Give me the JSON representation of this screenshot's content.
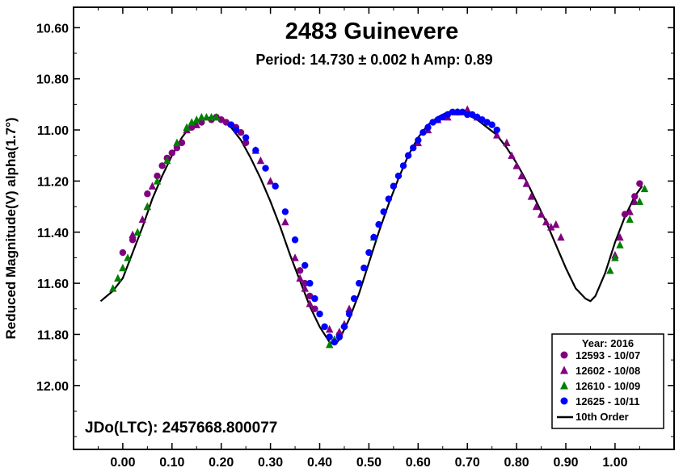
{
  "chart_data": {
    "type": "scatter",
    "title": "2483 Guinevere",
    "subtitle": "Period: 14.730 ± 0.002 h   Amp: 0.89",
    "ylabel": "Reduced Magnitude(V) alpha(1.7°)",
    "xlabel": "",
    "xlim": [
      -0.1,
      1.12
    ],
    "ylim": [
      10.52,
      12.25
    ],
    "y_inverted": true,
    "x_ticks": [
      "0.00",
      "0.10",
      "0.20",
      "0.30",
      "0.40",
      "0.50",
      "0.60",
      "0.70",
      "0.80",
      "0.90",
      "1.00"
    ],
    "y_ticks": [
      "10.60",
      "10.80",
      "11.00",
      "11.20",
      "11.40",
      "11.60",
      "11.80",
      "12.00"
    ],
    "annotation": "JDo(LTC): 2457668.800077",
    "legend": {
      "title": "Year: 2016",
      "position": "bottom-right",
      "entries": [
        {
          "label": "12593 - 10/07",
          "marker": "circle",
          "color": "#800080"
        },
        {
          "label": "12602 - 10/08",
          "marker": "triangle",
          "color": "#800080"
        },
        {
          "label": "12610 - 10/09",
          "marker": "triangle",
          "color": "#008000"
        },
        {
          "label": "12625 - 10/11",
          "marker": "circle",
          "color": "#0000ff"
        },
        {
          "label": "10th Order",
          "marker": "line",
          "color": "#000000"
        }
      ]
    },
    "fit_curve": {
      "name": "10th Order",
      "x": [
        -0.045,
        -0.02,
        0.0,
        0.02,
        0.04,
        0.06,
        0.08,
        0.1,
        0.12,
        0.14,
        0.16,
        0.18,
        0.2,
        0.22,
        0.24,
        0.26,
        0.28,
        0.3,
        0.32,
        0.34,
        0.36,
        0.38,
        0.4,
        0.42,
        0.43,
        0.44,
        0.46,
        0.48,
        0.5,
        0.52,
        0.54,
        0.56,
        0.58,
        0.6,
        0.62,
        0.64,
        0.66,
        0.68,
        0.7,
        0.72,
        0.74,
        0.76,
        0.78,
        0.8,
        0.82,
        0.84,
        0.86,
        0.88,
        0.9,
        0.92,
        0.94,
        0.95,
        0.96,
        0.98,
        1.0,
        1.02,
        1.04,
        1.055
      ],
      "y": [
        11.67,
        11.63,
        11.58,
        11.48,
        11.38,
        11.27,
        11.18,
        11.1,
        11.03,
        10.98,
        10.96,
        10.95,
        10.96,
        10.99,
        11.04,
        11.11,
        11.19,
        11.28,
        11.38,
        11.49,
        11.59,
        11.69,
        11.77,
        11.83,
        11.84,
        11.82,
        11.74,
        11.64,
        11.52,
        11.4,
        11.29,
        11.19,
        11.1,
        11.03,
        10.98,
        10.95,
        10.93,
        10.93,
        10.94,
        10.96,
        10.99,
        11.02,
        11.07,
        11.13,
        11.2,
        11.28,
        11.36,
        11.45,
        11.54,
        11.62,
        11.66,
        11.67,
        11.65,
        11.56,
        11.44,
        11.34,
        11.26,
        11.22
      ]
    },
    "series": [
      {
        "name": "12593 - 10/07",
        "marker": "circle",
        "color": "#800080",
        "x": [
          0.0,
          0.02,
          0.05,
          0.07,
          0.08,
          0.09,
          0.1,
          0.11,
          0.12,
          0.14,
          0.16,
          0.18,
          0.19,
          0.2,
          0.21,
          0.22,
          0.23,
          0.24,
          0.25,
          0.36,
          0.37,
          0.38,
          0.39,
          0.43,
          0.44,
          0.45,
          1.02,
          1.04,
          1.05
        ],
        "y": [
          11.48,
          11.43,
          11.25,
          11.18,
          11.14,
          11.11,
          11.09,
          11.07,
          11.05,
          10.99,
          10.97,
          10.96,
          10.95,
          10.96,
          10.97,
          10.98,
          10.99,
          11.01,
          11.05,
          11.55,
          11.6,
          11.65,
          11.7,
          11.83,
          11.8,
          11.77,
          11.33,
          11.26,
          11.21
        ]
      },
      {
        "name": "12602 - 10/08",
        "marker": "triangle",
        "color": "#800080",
        "x": [
          0.02,
          0.04,
          0.05,
          0.06,
          0.13,
          0.15,
          0.27,
          0.28,
          0.3,
          0.33,
          0.35,
          0.36,
          0.37,
          0.38,
          0.42,
          0.43,
          0.44,
          0.45,
          0.46,
          0.6,
          0.62,
          0.64,
          0.66,
          0.68,
          0.7,
          0.72,
          0.76,
          0.78,
          0.79,
          0.8,
          0.81,
          0.82,
          0.83,
          0.84,
          0.85,
          0.86,
          0.87,
          0.88,
          0.89,
          1.0,
          1.01,
          1.03,
          1.04
        ],
        "y": [
          11.41,
          11.35,
          11.3,
          11.22,
          11.0,
          10.98,
          11.08,
          11.12,
          11.2,
          11.36,
          11.5,
          11.58,
          11.62,
          11.68,
          11.78,
          11.82,
          11.79,
          11.76,
          11.7,
          11.05,
          11.0,
          10.96,
          10.95,
          10.93,
          10.92,
          10.95,
          11.02,
          11.05,
          11.1,
          11.14,
          11.18,
          11.21,
          11.26,
          11.3,
          11.33,
          11.36,
          11.38,
          11.37,
          11.42,
          11.49,
          11.42,
          11.32,
          11.28
        ]
      },
      {
        "name": "12610 - 10/09",
        "marker": "triangle",
        "color": "#008000",
        "x": [
          -0.02,
          -0.01,
          0.0,
          0.01,
          0.03,
          0.05,
          0.07,
          0.09,
          0.11,
          0.13,
          0.14,
          0.15,
          0.16,
          0.17,
          0.18,
          0.19,
          0.42,
          0.43,
          0.51,
          0.99,
          1.0,
          1.01,
          1.03,
          1.05,
          1.06
        ],
        "y": [
          11.62,
          11.58,
          11.54,
          11.5,
          11.4,
          11.3,
          11.2,
          11.12,
          11.05,
          10.99,
          10.97,
          10.96,
          10.95,
          10.95,
          10.95,
          10.95,
          11.84,
          11.82,
          11.42,
          11.55,
          11.5,
          11.45,
          11.35,
          11.28,
          11.23
        ]
      },
      {
        "name": "12625 - 10/11",
        "marker": "circle",
        "color": "#0000ff",
        "x": [
          0.22,
          0.23,
          0.25,
          0.27,
          0.29,
          0.31,
          0.33,
          0.35,
          0.37,
          0.38,
          0.39,
          0.4,
          0.41,
          0.42,
          0.43,
          0.44,
          0.45,
          0.46,
          0.47,
          0.48,
          0.49,
          0.5,
          0.51,
          0.52,
          0.53,
          0.54,
          0.55,
          0.56,
          0.57,
          0.58,
          0.59,
          0.6,
          0.61,
          0.62,
          0.63,
          0.64,
          0.65,
          0.66,
          0.67,
          0.68,
          0.69,
          0.7,
          0.71,
          0.72,
          0.73,
          0.74,
          0.75,
          0.76
        ],
        "y": [
          10.98,
          11.0,
          11.03,
          11.08,
          11.15,
          11.22,
          11.32,
          11.43,
          11.53,
          11.6,
          11.66,
          11.72,
          11.77,
          11.81,
          11.83,
          11.81,
          11.77,
          11.72,
          11.66,
          11.6,
          11.54,
          11.48,
          11.42,
          11.37,
          11.32,
          11.27,
          11.22,
          11.18,
          11.14,
          11.1,
          11.07,
          11.04,
          11.01,
          10.99,
          10.97,
          10.96,
          10.95,
          10.94,
          10.93,
          10.93,
          10.93,
          10.94,
          10.94,
          10.95,
          10.96,
          10.97,
          10.98,
          11.0
        ]
      }
    ]
  }
}
